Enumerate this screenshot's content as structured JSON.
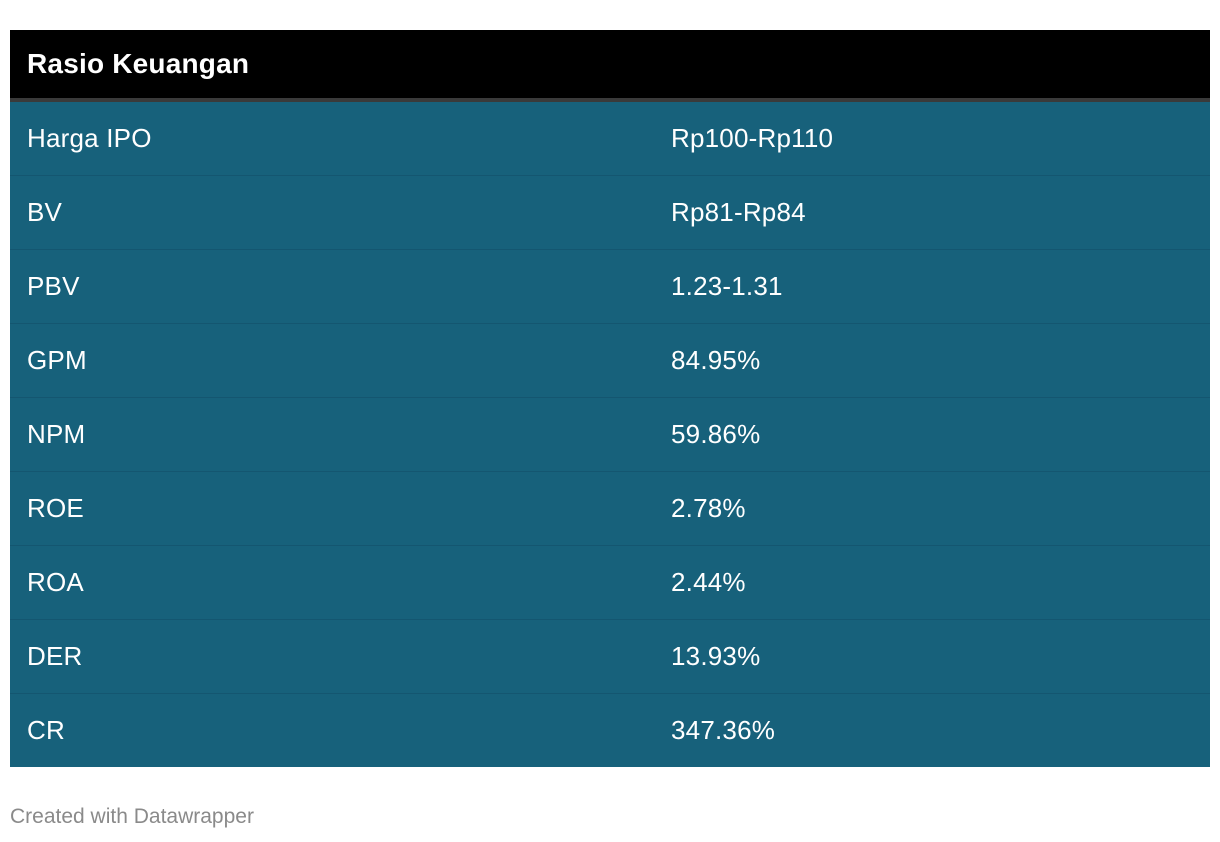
{
  "chart_data": {
    "type": "table",
    "title": "Rasio Keuangan",
    "columns": [
      "Rasio Keuangan",
      ""
    ],
    "rows": [
      {
        "label": "Harga IPO",
        "value": "Rp100-Rp110"
      },
      {
        "label": "BV",
        "value": "Rp81-Rp84"
      },
      {
        "label": "PBV",
        "value": "1.23-1.31"
      },
      {
        "label": "GPM",
        "value": "84.95%"
      },
      {
        "label": "NPM",
        "value": "59.86%"
      },
      {
        "label": "ROE",
        "value": "2.78%"
      },
      {
        "label": "ROA",
        "value": "2.44%"
      },
      {
        "label": "DER",
        "value": "13.93%"
      },
      {
        "label": "CR",
        "value": "347.36%"
      }
    ]
  },
  "footer": {
    "credit": "Created with Datawrapper"
  },
  "colors": {
    "header_bg": "#000000",
    "row_bg": "#17617b",
    "text": "#ffffff",
    "footer_text": "#8a8a8a"
  }
}
